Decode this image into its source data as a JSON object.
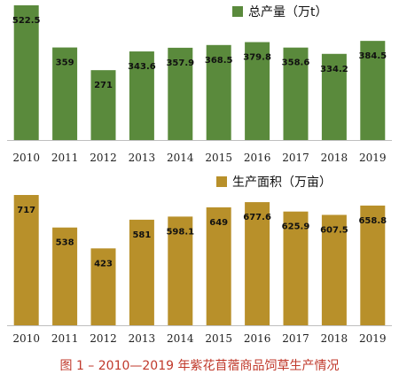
{
  "chart_data": [
    {
      "type": "bar",
      "categories": [
        "2010",
        "2011",
        "2012",
        "2013",
        "2014",
        "2015",
        "2016",
        "2017",
        "2018",
        "2019"
      ],
      "series": [
        {
          "name": "总产量（万t）",
          "values": [
            522.5,
            359,
            271,
            343.6,
            357.9,
            368.5,
            379.8,
            358.6,
            334.2,
            384.5
          ],
          "labels": [
            "522.5",
            "359",
            "271",
            "343.6",
            "357.9",
            "368.5",
            "379.8",
            "358.6",
            "334.2",
            "384.5"
          ]
        }
      ],
      "ylim": [
        0,
        522.5
      ],
      "color": "#5a8a3c",
      "legend_position": "top-right",
      "grid": false
    },
    {
      "type": "bar",
      "categories": [
        "2010",
        "2011",
        "2012",
        "2013",
        "2014",
        "2015",
        "2016",
        "2017",
        "2018",
        "2019"
      ],
      "series": [
        {
          "name": "生产面积（万亩）",
          "values": [
            717,
            538,
            423,
            581,
            598.1,
            649,
            677.6,
            625.9,
            607.5,
            658.8
          ],
          "labels": [
            "717",
            "538",
            "423",
            "581",
            "598.1",
            "649",
            "677.6",
            "625.9",
            "607.5",
            "658.8"
          ]
        }
      ],
      "ylim": [
        0,
        717
      ],
      "color": "#b8902a",
      "legend_position": "top-right",
      "grid": false
    }
  ],
  "caption": {
    "prefix": "图 1 – ",
    "text": "2010—2019 年紫花苜蓿商品饲草生产情况"
  }
}
